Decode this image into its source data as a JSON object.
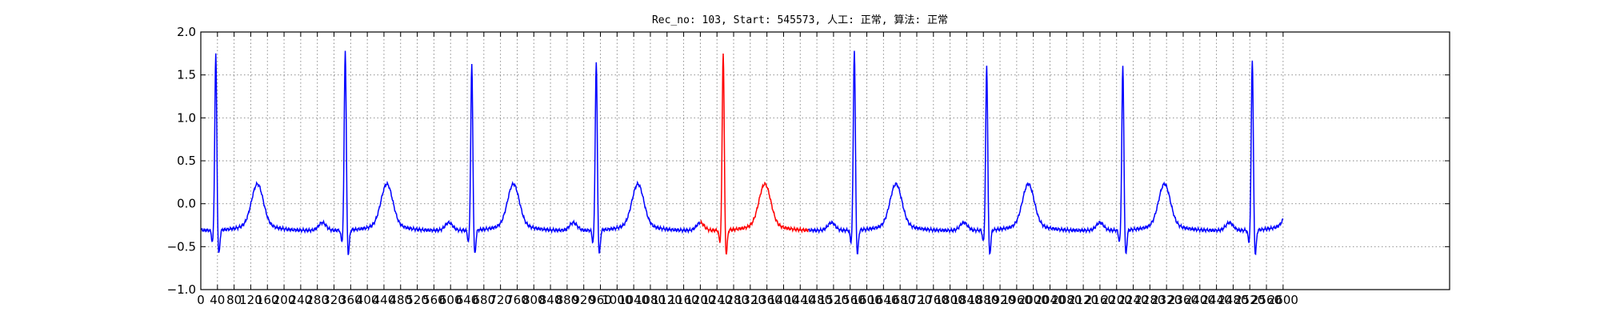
{
  "chart_data": {
    "type": "line",
    "title": "Rec_no: 103, Start: 545573, 人工: 正常, 算法: 正常",
    "xlabel": "",
    "ylabel": "",
    "xlim": [
      0,
      3000
    ],
    "ylim": [
      -1.0,
      2.0
    ],
    "yticks": [
      -1.0,
      -0.5,
      0.0,
      0.5,
      1.0,
      1.5,
      2.0
    ],
    "ytick_labels": [
      "−1.0",
      "−0.5",
      "0.0",
      "0.5",
      "1.0",
      "1.5",
      "2.0"
    ],
    "xticks": [
      0,
      40,
      80,
      120,
      160,
      200,
      240,
      280,
      320,
      360,
      400,
      440,
      480,
      520,
      560,
      600,
      640,
      680,
      720,
      760,
      800,
      840,
      880,
      920,
      960,
      1000,
      1040,
      1080,
      1120,
      1160,
      1200,
      1240,
      1280,
      1320,
      1360,
      1400,
      1440,
      1480,
      1520,
      1560,
      1600,
      1640,
      1680,
      1720,
      1760,
      1800,
      1840,
      1880,
      1920,
      1960,
      2000,
      2040,
      2080,
      2120,
      2160,
      2200,
      2240,
      2280,
      2320,
      2360,
      2400,
      2440,
      2480,
      2520,
      2560,
      2600
    ],
    "grid": true,
    "legend": "none",
    "series": [
      {
        "color": "#0000ff",
        "x_end": 2600,
        "beats": [
          {
            "r": 36,
            "amp": 1.72
          },
          {
            "r": 347,
            "amp": 1.77
          },
          {
            "r": 651,
            "amp": 1.6
          },
          {
            "r": 950,
            "amp": 1.63
          },
          {
            "r": 1570,
            "amp": 1.78
          },
          {
            "r": 1888,
            "amp": 1.58
          },
          {
            "r": 2215,
            "amp": 1.58
          },
          {
            "r": 2526,
            "amp": 1.67
          }
        ]
      },
      {
        "color": "#ff0000",
        "x_range": [
          1200,
          1460
        ],
        "beats": [
          {
            "r": 1255,
            "amp": 1.75
          }
        ]
      }
    ]
  }
}
